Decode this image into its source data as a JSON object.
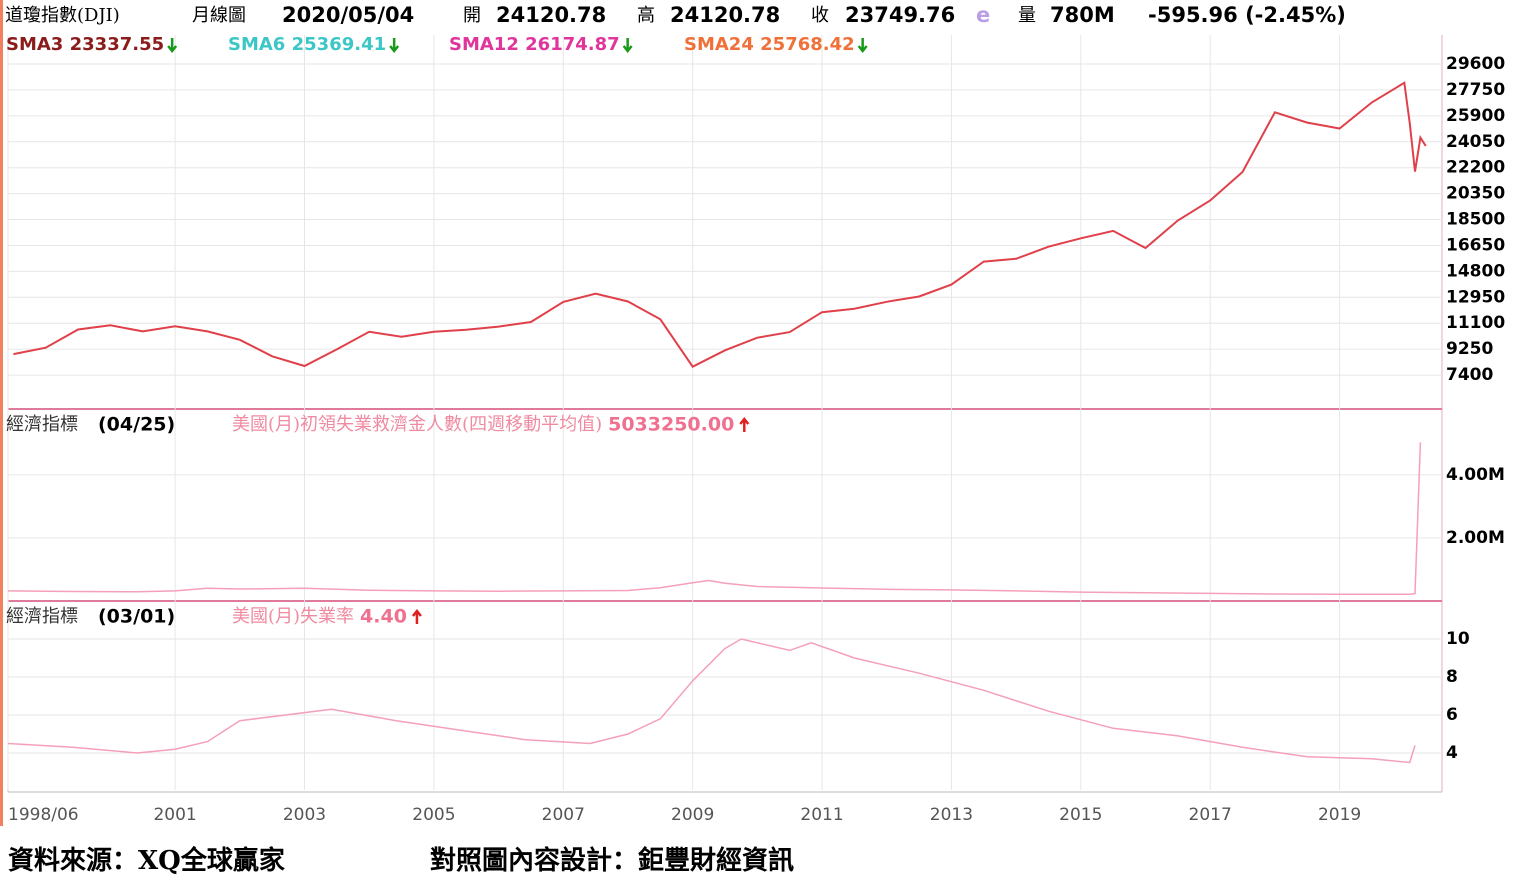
{
  "chart_data": [
    {
      "type": "line",
      "title": "道瓊指數(DJI)",
      "subtitle": "月線圖",
      "date": "2020/05/04",
      "open_label": "開",
      "open": 24120.78,
      "high_label": "高",
      "high": 24120.78,
      "close_label": "收",
      "close": 23749.76,
      "estimate_mark": "e",
      "volume_label": "量",
      "volume": "780M",
      "change": "-595.96 (-2.45%)",
      "indicators": [
        {
          "name": "SMA3",
          "value": 23337.55,
          "color": "#8b1c1c"
        },
        {
          "name": "SMA6",
          "value": 25369.41,
          "color": "#3cc6c6"
        },
        {
          "name": "SMA12",
          "value": 26174.87,
          "color": "#e0359b"
        },
        {
          "name": "SMA24",
          "value": 25768.42,
          "color": "#f0703a"
        }
      ],
      "x": [
        "1998/07",
        "1999/01",
        "1999/07",
        "2000/01",
        "2000/07",
        "2001/01",
        "2001/07",
        "2002/01",
        "2002/07",
        "2003/01",
        "2003/07",
        "2004/01",
        "2004/07",
        "2005/01",
        "2005/07",
        "2006/01",
        "2006/07",
        "2007/01",
        "2007/07",
        "2008/01",
        "2008/07",
        "2009/01",
        "2009/07",
        "2010/01",
        "2010/07",
        "2011/01",
        "2011/07",
        "2012/01",
        "2012/07",
        "2013/01",
        "2013/07",
        "2014/01",
        "2014/07",
        "2015/01",
        "2015/07",
        "2016/01",
        "2016/07",
        "2017/01",
        "2017/07",
        "2018/01",
        "2018/07",
        "2019/01",
        "2019/07",
        "2020/01",
        "2020/02",
        "2020/03",
        "2020/04",
        "2020/05"
      ],
      "values": [
        8900,
        9350,
        10650,
        10950,
        10520,
        10880,
        10520,
        9920,
        8740,
        8050,
        9230,
        10490,
        10140,
        10490,
        10640,
        10860,
        11190,
        12620,
        13210,
        12650,
        11380,
        8000,
        9170,
        10070,
        10470,
        11890,
        12140,
        12630,
        13010,
        13860,
        15500,
        15700,
        16560,
        17160,
        17690,
        16470,
        18430,
        19860,
        21890,
        26150,
        25420,
        25000,
        26860,
        28260,
        25410,
        21920,
        24350,
        23750
      ],
      "color": "#e0404a",
      "xlim": [
        "1998/06",
        "2020/08"
      ],
      "xticks": [
        "1998/06",
        {
          "value": "2001/01",
          "label": "2001"
        },
        {
          "value": "2003/01",
          "label": "2003"
        },
        {
          "value": "2005/01",
          "label": "2005"
        },
        {
          "value": "2007/01",
          "label": "2007"
        },
        {
          "value": "2009/01",
          "label": "2009"
        },
        {
          "value": "2011/01",
          "label": "2011"
        },
        {
          "value": "2013/01",
          "label": "2013"
        },
        {
          "value": "2015/01",
          "label": "2015"
        },
        {
          "value": "2017/01",
          "label": "2017"
        },
        {
          "value": "2019/01",
          "label": "2019"
        }
      ],
      "ylim": [
        5050,
        31670
      ],
      "yticks": [
        7400,
        9250,
        11100,
        12950,
        14800,
        16650,
        18500,
        20350,
        22200,
        24050,
        25900,
        27750,
        29600
      ],
      "grid": true
    },
    {
      "type": "line",
      "title": "經濟指標",
      "date": "(04/25)",
      "series_name": "美國(月)初領失業救濟金人數(四週移動平均值)",
      "latest": 5033250,
      "latest_label": "5033250.00",
      "x": [
        "1998/06",
        "1999/06",
        "2000/06",
        "2001/01",
        "2001/07",
        "2002/01",
        "2003/01",
        "2004/01",
        "2005/01",
        "2006/01",
        "2007/01",
        "2008/01",
        "2008/07",
        "2009/01",
        "2009/04",
        "2009/07",
        "2010/01",
        "2011/01",
        "2012/01",
        "2013/01",
        "2014/01",
        "2015/01",
        "2016/01",
        "2017/01",
        "2018/01",
        "2019/01",
        "2020/02",
        "2020/03",
        "2020/04"
      ],
      "values": [
        320000,
        300000,
        290000,
        320000,
        400000,
        380000,
        400000,
        340000,
        320000,
        310000,
        320000,
        330000,
        420000,
        580000,
        650000,
        560000,
        460000,
        410000,
        370000,
        350000,
        320000,
        280000,
        260000,
        240000,
        220000,
        215000,
        210000,
        232000,
        5033250
      ],
      "color": "#f4a0b8",
      "ylim": [
        30000,
        6060000
      ],
      "yticks": [
        {
          "value": 2000000,
          "label": "2.00M"
        },
        {
          "value": 4000000,
          "label": "4.00M"
        }
      ],
      "grid": true
    },
    {
      "type": "line",
      "title": "經濟指標",
      "date": "(03/01)",
      "series_name": "美國(月)失業率",
      "latest": 4.4,
      "latest_label": "4.40",
      "x": [
        "1998/06",
        "1999/06",
        "2000/06",
        "2001/01",
        "2001/07",
        "2002/01",
        "2003/06",
        "2004/06",
        "2005/06",
        "2006/06",
        "2007/06",
        "2008/01",
        "2008/07",
        "2009/01",
        "2009/07",
        "2009/10",
        "2010/07",
        "2010/11",
        "2011/07",
        "2012/07",
        "2013/07",
        "2014/07",
        "2015/07",
        "2016/07",
        "2017/07",
        "2018/07",
        "2019/07",
        "2020/02",
        "2020/03"
      ],
      "values": [
        4.5,
        4.3,
        4.0,
        4.2,
        4.6,
        5.7,
        6.3,
        5.7,
        5.2,
        4.7,
        4.5,
        5.0,
        5.8,
        7.8,
        9.5,
        10.0,
        9.4,
        9.8,
        9.0,
        8.2,
        7.3,
        6.2,
        5.3,
        4.9,
        4.3,
        3.8,
        3.7,
        3.5,
        4.4
      ],
      "color": "#f4a0b8",
      "ylim": [
        2.05,
        11.95
      ],
      "yticks": [
        4,
        6,
        8,
        10
      ],
      "grid": true
    }
  ],
  "footer": {
    "source": "資料來源：XQ全球贏家",
    "design": "對照圖內容設計：鉅豐財經資訊"
  }
}
